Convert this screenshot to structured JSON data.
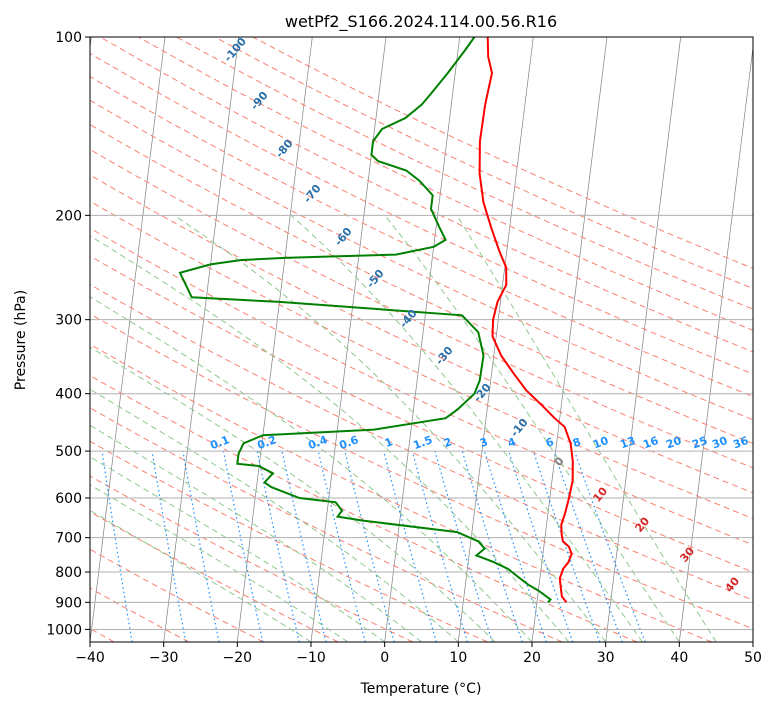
{
  "chart_data": {
    "type": "line",
    "title": "wetPf2_S166.2024.114.00.56.R16",
    "xlabel": "Temperature (°C)",
    "ylabel": "Pressure (hPa)",
    "xlim": [
      -40,
      50
    ],
    "ylim": [
      1050,
      100
    ],
    "y_scale": "log",
    "grid": true,
    "x_ticks": [
      "−40",
      "−30",
      "−20",
      "−10",
      "0",
      "10",
      "20",
      "30",
      "40",
      "50"
    ],
    "y_ticks": [
      "100",
      "200",
      "300",
      "400",
      "500",
      "600",
      "700",
      "800",
      "900",
      "1000"
    ],
    "series": [
      {
        "color": "#ff0000",
        "points": [
          [
            24.0,
            900
          ],
          [
            23.3,
            880
          ],
          [
            23.0,
            850
          ],
          [
            22.7,
            820
          ],
          [
            23.0,
            790
          ],
          [
            23.6,
            770
          ],
          [
            23.9,
            745
          ],
          [
            23.4,
            725
          ],
          [
            22.5,
            710
          ],
          [
            22.2,
            690
          ],
          [
            22.0,
            665
          ],
          [
            22.3,
            640
          ],
          [
            22.6,
            600
          ],
          [
            22.8,
            560
          ],
          [
            22.5,
            520
          ],
          [
            21.9,
            485
          ],
          [
            20.8,
            455
          ],
          [
            19.3,
            440
          ],
          [
            17.5,
            420
          ],
          [
            15.0,
            395
          ],
          [
            13.0,
            370
          ],
          [
            11.0,
            345
          ],
          [
            9.5,
            320
          ],
          [
            9.3,
            300
          ],
          [
            9.6,
            280
          ],
          [
            10.5,
            262
          ],
          [
            10.2,
            245
          ],
          [
            9.0,
            230
          ],
          [
            7.5,
            210
          ],
          [
            6.0,
            190
          ],
          [
            5.0,
            170
          ],
          [
            4.5,
            150
          ],
          [
            4.6,
            130
          ],
          [
            5.0,
            115
          ],
          [
            4.2,
            108
          ],
          [
            3.8,
            100
          ]
        ]
      },
      {
        "color": "#008000",
        "points": [
          [
            21.5,
            900
          ],
          [
            21.8,
            890
          ],
          [
            20.0,
            860
          ],
          [
            18.5,
            840
          ],
          [
            17.0,
            815
          ],
          [
            15.5,
            790
          ],
          [
            13.5,
            770
          ],
          [
            11.0,
            750
          ],
          [
            12.0,
            730
          ],
          [
            11.0,
            710
          ],
          [
            8.0,
            685
          ],
          [
            -5.0,
            655
          ],
          [
            -8.5,
            645
          ],
          [
            -8.0,
            630
          ],
          [
            -9.0,
            610
          ],
          [
            -14.0,
            600
          ],
          [
            -18.0,
            575
          ],
          [
            -19.0,
            565
          ],
          [
            -18.0,
            545
          ],
          [
            -20.0,
            530
          ],
          [
            -23.0,
            525
          ],
          [
            -23.0,
            505
          ],
          [
            -22.5,
            485
          ],
          [
            -20.0,
            470
          ],
          [
            -5.0,
            460
          ],
          [
            4.5,
            440
          ],
          [
            6.0,
            425
          ],
          [
            8.0,
            400
          ],
          [
            8.5,
            380
          ],
          [
            8.6,
            345
          ],
          [
            7.5,
            315
          ],
          [
            5.0,
            295
          ],
          [
            -20.0,
            280
          ],
          [
            -32.0,
            275
          ],
          [
            -33.0,
            262
          ],
          [
            -34.0,
            250
          ],
          [
            -30.0,
            242
          ],
          [
            -26.0,
            238
          ],
          [
            -20.0,
            236
          ],
          [
            -15.0,
            235
          ],
          [
            -5.0,
            233
          ],
          [
            0.0,
            226
          ],
          [
            1.5,
            220
          ],
          [
            0.5,
            210
          ],
          [
            -1.0,
            195
          ],
          [
            -1.0,
            185
          ],
          [
            -3.0,
            175
          ],
          [
            -5.0,
            168
          ],
          [
            -9.0,
            162
          ],
          [
            -10.0,
            158
          ],
          [
            -10.0,
            150
          ],
          [
            -9.0,
            143
          ],
          [
            -6.0,
            137
          ],
          [
            -4.0,
            130
          ],
          [
            -3.0,
            125
          ],
          [
            -1.0,
            115
          ],
          [
            1.0,
            105
          ],
          [
            2.0,
            100
          ]
        ]
      }
    ],
    "dry_adiabat_labels": [
      "-100",
      "-90",
      "-80",
      "-70",
      "-60",
      "-50",
      "-40",
      "-30",
      "-20",
      "-10",
      "0",
      "10",
      "20",
      "30",
      "40"
    ],
    "mixing_ratio_labels": [
      "0.1",
      "0.2",
      "0.4",
      "0.6",
      "1",
      "1.5",
      "2",
      "3",
      "4",
      "6",
      "8",
      "10",
      "13",
      "16",
      "20",
      "25",
      "30",
      "36"
    ],
    "colors": {
      "temperature": "#ff0000",
      "dewpoint": "#008000",
      "dry_adiabat": "#fa8072",
      "moist_adiabat": "#90c890",
      "mixing_ratio": "#1e90ff",
      "isotherm": "#808080",
      "cold_label": "#2a6fa8",
      "warm_label": "#d62728",
      "zero_label": "#808080"
    }
  }
}
